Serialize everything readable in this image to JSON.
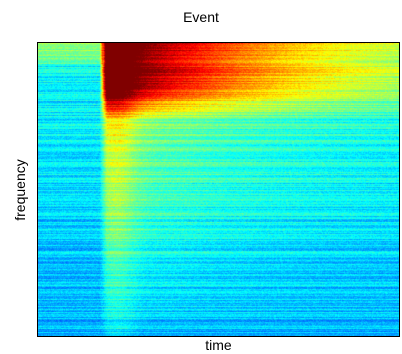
{
  "chart_data": {
    "type": "heatmap",
    "title": "Event",
    "xlabel": "time",
    "ylabel": "frequency",
    "x_ticks": [],
    "y_ticks": [],
    "colormap": "jet",
    "grid": false,
    "legend": "none",
    "event": {
      "onset_time_fraction": 0.18,
      "peak_intensity": 0.92,
      "high_intensity_frequency_band": [
        0.83,
        1.0
      ],
      "background_intensity": 0.38,
      "decay": "intensity decreases with later time and lower frequency"
    },
    "colors": {
      "low": "#1f4fd8",
      "mid_low": "#3fb6c8",
      "mid": "#8fe07a",
      "mid_high": "#f2f22a",
      "high": "#d81a0c"
    }
  }
}
